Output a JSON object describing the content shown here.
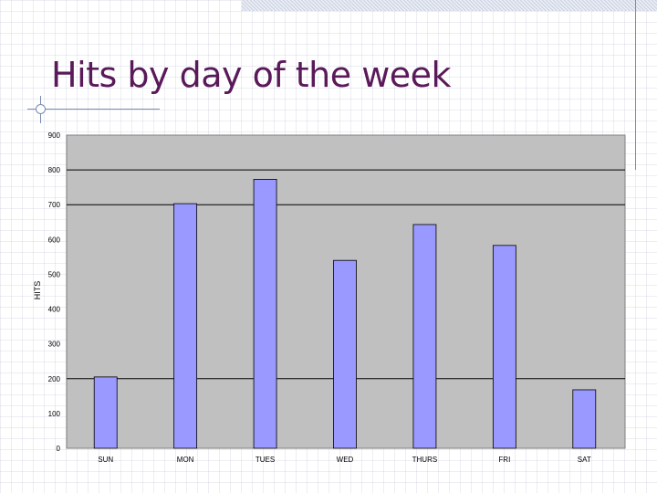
{
  "slide": {
    "title": "Hits by day of the week"
  },
  "chart_data": {
    "type": "bar",
    "title": "",
    "xlabel": "",
    "ylabel": "HITS",
    "ylim": [
      0,
      900
    ],
    "yticks": [
      "0",
      "100",
      "200",
      "300",
      "400",
      "500",
      "600",
      "700",
      "800",
      "900"
    ],
    "categories": [
      "SUN",
      "MON",
      "TUES",
      "WED",
      "THURS",
      "FRI",
      "SAT"
    ],
    "values": [
      205,
      703,
      773,
      540,
      643,
      583,
      168
    ],
    "gridlines": [
      200,
      700,
      800
    ],
    "grid": "horizontal major lines",
    "legend": "none",
    "colors": {
      "bar": "#9999ff",
      "plot_background": "#c0c0c0",
      "gridline": "#000000"
    }
  }
}
